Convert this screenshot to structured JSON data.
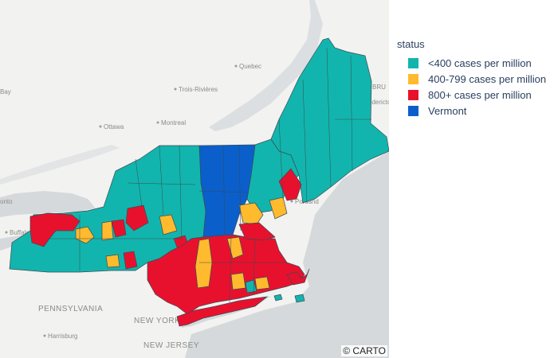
{
  "legend": {
    "title": "status",
    "items": [
      {
        "label": "<400 cases per million",
        "color": "#12b5ad"
      },
      {
        "label": "400-799 cases per million",
        "color": "#ffba2e"
      },
      {
        "label": "800+ cases per million",
        "color": "#e8112d"
      },
      {
        "label": "Vermont",
        "color": "#0a5fcb"
      }
    ]
  },
  "basemap": {
    "places": [
      "Quebec",
      "Trois-Rivières",
      "Montreal",
      "Ottawa",
      "Buffalo",
      "Portland",
      "Harrisburg"
    ],
    "regions": [
      "PENNSYLVANIA",
      "NEW YORK",
      "NEW JERSEY"
    ],
    "edge_fragments": [
      "BRU",
      "edericto",
      "onto",
      "Bay"
    ]
  },
  "attribution": "© CARTO"
}
